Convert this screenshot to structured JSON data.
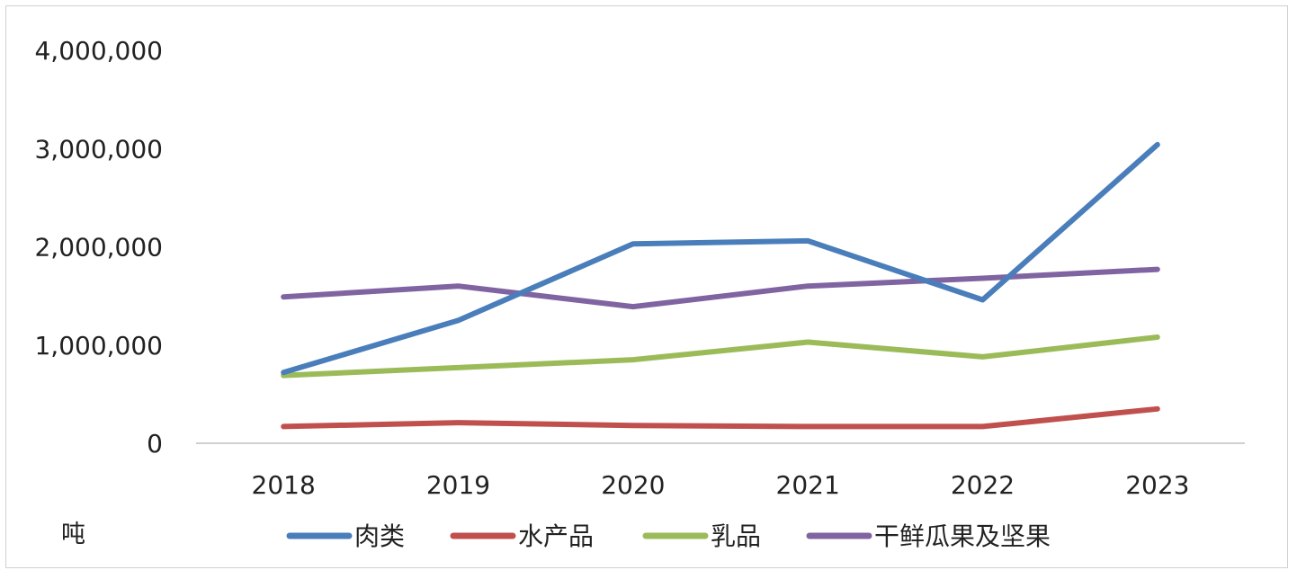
{
  "chart_data": {
    "type": "line",
    "x": [
      "2018",
      "2019",
      "2020",
      "2021",
      "2022",
      "2023"
    ],
    "y_ticks": [
      "0",
      "1,000,000",
      "2,000,000",
      "3,000,000",
      "4,000,000"
    ],
    "ylim": [
      0,
      4000000
    ],
    "unit_label": "吨",
    "grid": false,
    "legend_position": "bottom",
    "series": [
      {
        "name": "肉类",
        "color": "#4a7ebb",
        "values": [
          720000,
          1250000,
          2030000,
          2060000,
          1460000,
          3040000
        ]
      },
      {
        "name": "水产品",
        "color": "#c0504d",
        "values": [
          170000,
          210000,
          180000,
          170000,
          170000,
          350000
        ]
      },
      {
        "name": "乳品",
        "color": "#9bbb59",
        "values": [
          690000,
          770000,
          850000,
          1030000,
          880000,
          1080000
        ]
      },
      {
        "name": "干鲜瓜果及坚果",
        "color": "#8064a2",
        "values": [
          1490000,
          1600000,
          1390000,
          1600000,
          1680000,
          1770000
        ]
      }
    ]
  }
}
